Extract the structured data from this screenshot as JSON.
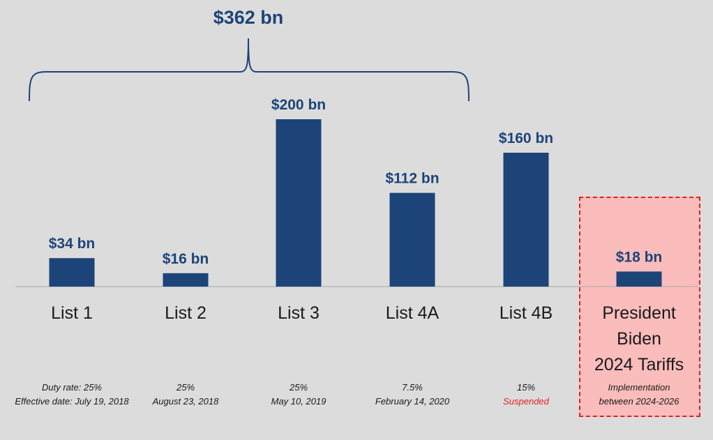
{
  "chart_data": {
    "type": "bar",
    "categories": [
      "List 1",
      "List 2",
      "List 3",
      "List 4A",
      "List 4B",
      "President Biden 2024 Tariffs"
    ],
    "category_lines": [
      [
        "List 1"
      ],
      [
        "List 2"
      ],
      [
        "List 3"
      ],
      [
        "List 4A"
      ],
      [
        "List 4B"
      ],
      [
        "President",
        "Biden",
        "2024 Tariffs"
      ]
    ],
    "values": [
      34,
      16,
      200,
      112,
      160,
      18
    ],
    "value_labels": [
      "$34 bn",
      "$16 bn",
      "$200 bn",
      "$112 bn",
      "$160 bn",
      "$18 bn"
    ],
    "notes": [
      [
        {
          "text": "Duty rate: 25%",
          "red": false
        },
        {
          "text": "Effective date: July 19, 2018",
          "red": false
        }
      ],
      [
        {
          "text": "25%",
          "red": false
        },
        {
          "text": "August 23, 2018",
          "red": false
        }
      ],
      [
        {
          "text": "25%",
          "red": false
        },
        {
          "text": "May 10, 2019",
          "red": false
        }
      ],
      [
        {
          "text": "7.5%",
          "red": false
        },
        {
          "text": "February 14, 2020",
          "red": false
        }
      ],
      [
        {
          "text": "15%",
          "red": false
        },
        {
          "text": "Suspended",
          "red": true
        }
      ],
      [
        {
          "text": "Implementation",
          "red": false
        },
        {
          "text": "between 2024-2026",
          "red": false
        }
      ]
    ],
    "bracket": {
      "label": "$362 bn",
      "spans_categories": [
        "List 1",
        "List 2",
        "List 3",
        "List 4A"
      ]
    },
    "highlighted_category": "President Biden 2024 Tariffs",
    "ylim": [
      0,
      200
    ],
    "grid": false,
    "title": "",
    "xlabel": "",
    "ylabel": ""
  },
  "colors": {
    "bar": "#1c4478",
    "background": "#dcdcdc",
    "highlight_fill": "#fbbcbc",
    "highlight_border": "#e02020",
    "suspended_text": "#e02020"
  }
}
